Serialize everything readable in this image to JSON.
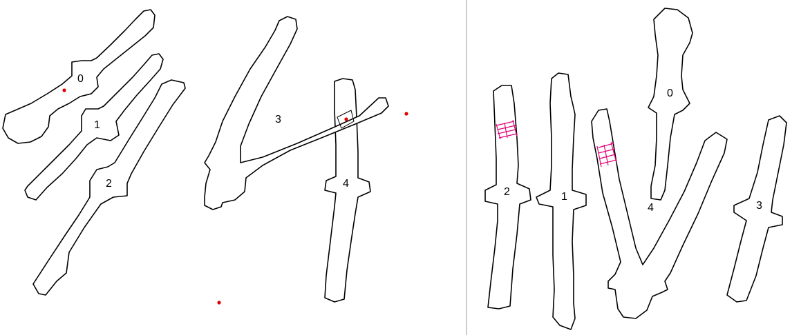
{
  "left_panel": {
    "labels": [
      "0",
      "1",
      "4",
      "3",
      "2"
    ]
  },
  "right_panel": {
    "labels": [
      "0",
      "3",
      "2",
      "4",
      "1"
    ]
  },
  "colors": {
    "outline": "#000000",
    "marker": "#e00000",
    "overlap_mark": "#e0007a",
    "divider": "#9a9a9a"
  }
}
